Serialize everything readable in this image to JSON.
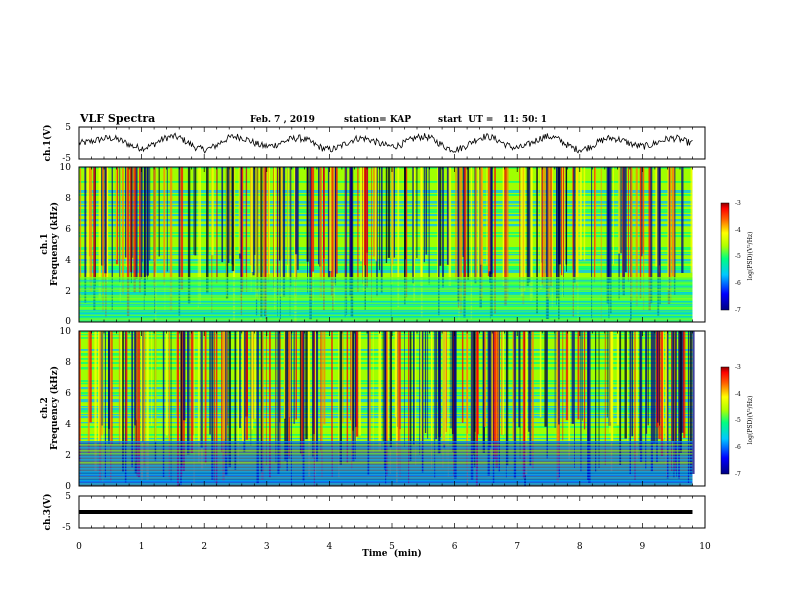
{
  "header": {
    "title": "VLF Spectra",
    "date": "Feb. 7 , 2019",
    "station": "station= KAP",
    "start": "start  UT =   11: 50: 1"
  },
  "colors": {
    "spectrogram_scale": [
      "#000080",
      "#0000ff",
      "#00c0ff",
      "#00ff80",
      "#a0ff00",
      "#ffff00",
      "#ff8000",
      "#ff0000",
      "#8b0000"
    ],
    "trace": "#000000",
    "background": "#ffffff"
  },
  "chart_data": [
    {
      "type": "line",
      "panel": "ch1-waveform",
      "ylabel": "ch.1(V)",
      "ylim": [
        -5,
        5
      ],
      "yticks": [
        "5",
        "-5"
      ],
      "xlim": [
        0,
        10
      ],
      "series": [
        {
          "x": [
            0,
            0.5,
            1,
            1.5,
            2,
            2.5,
            3,
            3.5,
            4,
            4.5,
            5,
            5.5,
            6,
            6.5,
            7,
            7.5,
            8,
            8.5,
            9,
            9.5,
            9.8
          ],
          "values": [
            0,
            1.5,
            -1.5,
            2,
            -2,
            2,
            -1,
            1.5,
            -2,
            1.5,
            -1,
            2,
            -2,
            2,
            -1.5,
            2,
            -2,
            1.5,
            -1,
            1.5,
            0
          ]
        }
      ]
    },
    {
      "type": "heatmap",
      "panel": "ch1-spectrogram",
      "ylabel_top": "ch.1",
      "ylabel": "Frequency  (kHz)",
      "ylim": [
        0,
        10
      ],
      "yticks": [
        "0",
        "2",
        "4",
        "6",
        "8",
        "10"
      ],
      "xlim": [
        0,
        9.8
      ],
      "colorbar": {
        "label": "log(PSD)(V²/Hz)",
        "range": [
          -7,
          -3
        ],
        "ticks": [
          "-3",
          "-4",
          "-5",
          "-6",
          "-7"
        ]
      }
    },
    {
      "type": "heatmap",
      "panel": "ch2-spectrogram",
      "ylabel_top": "ch.2",
      "ylabel": "Frequency  (kHz)",
      "ylim": [
        0,
        10
      ],
      "yticks": [
        "0",
        "2",
        "4",
        "6",
        "8",
        "10"
      ],
      "xlim": [
        0,
        9.8
      ],
      "colorbar": {
        "label": "log(PSD)(V²/Hz)",
        "range": [
          -7,
          -3
        ],
        "ticks": [
          "-3",
          "-4",
          "-5",
          "-6",
          "-7"
        ]
      }
    },
    {
      "type": "line",
      "panel": "ch3-waveform",
      "ylabel": "ch.3(V)",
      "ylim": [
        -5,
        5
      ],
      "yticks": [
        "5",
        "-5"
      ],
      "xlim": [
        0,
        10
      ],
      "xlabel": "Time  (min)",
      "xticks": [
        "0",
        "1",
        "2",
        "3",
        "4",
        "5",
        "6",
        "7",
        "8",
        "9",
        "10"
      ],
      "series": [
        {
          "x": [
            0,
            9.8
          ],
          "values": [
            0,
            0
          ]
        }
      ]
    }
  ]
}
